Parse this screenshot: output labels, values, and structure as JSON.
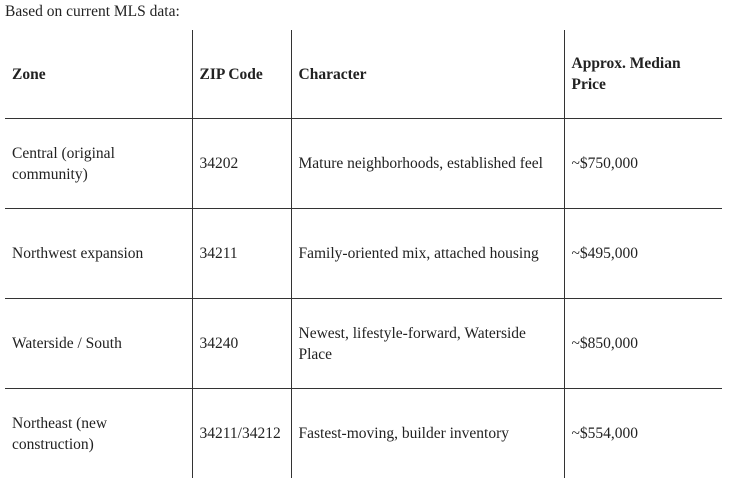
{
  "intro": "Based on current MLS data:",
  "table": {
    "header": [
      "Zone",
      "ZIP Code",
      "Character",
      "Approx. Median Price"
    ],
    "rows": [
      [
        "Central (original community)",
        "34202",
        "Mature neighborhoods, established feel",
        "~$750,000"
      ],
      [
        "Northwest expansion",
        "34211",
        "Family-oriented mix, attached housing",
        "~$495,000"
      ],
      [
        "Waterside / South",
        "34240",
        "Newest, lifestyle-forward, Waterside Place",
        "~$850,000"
      ],
      [
        "Northeast (new construction)",
        "34211/34212",
        "Fastest-moving, builder inventory",
        "~$554,000"
      ]
    ]
  }
}
